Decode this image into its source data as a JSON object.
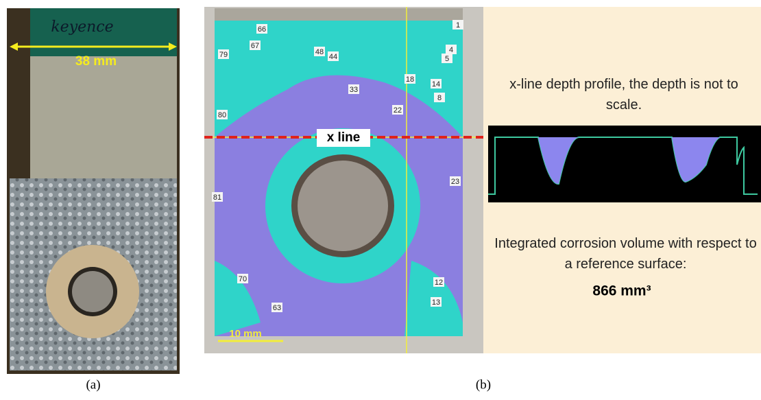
{
  "panel_a": {
    "tape_text": "keyence",
    "width_label": "38 mm",
    "caption": "(a)"
  },
  "panel_b": {
    "line_label": "x line",
    "scale_label": "10 mm",
    "markers": [
      "66",
      "67",
      "79",
      "48",
      "44",
      "33",
      "22",
      "1",
      "4",
      "5",
      "8",
      "80",
      "81",
      "23",
      "70",
      "63",
      "12",
      "13",
      "18",
      "14"
    ],
    "profile_title": "x-line depth profile, the depth is not to scale.",
    "volume_text": "Integrated corrosion volume with respect to a reference surface:",
    "volume_value": "866 mm³",
    "caption": "(b)"
  }
}
